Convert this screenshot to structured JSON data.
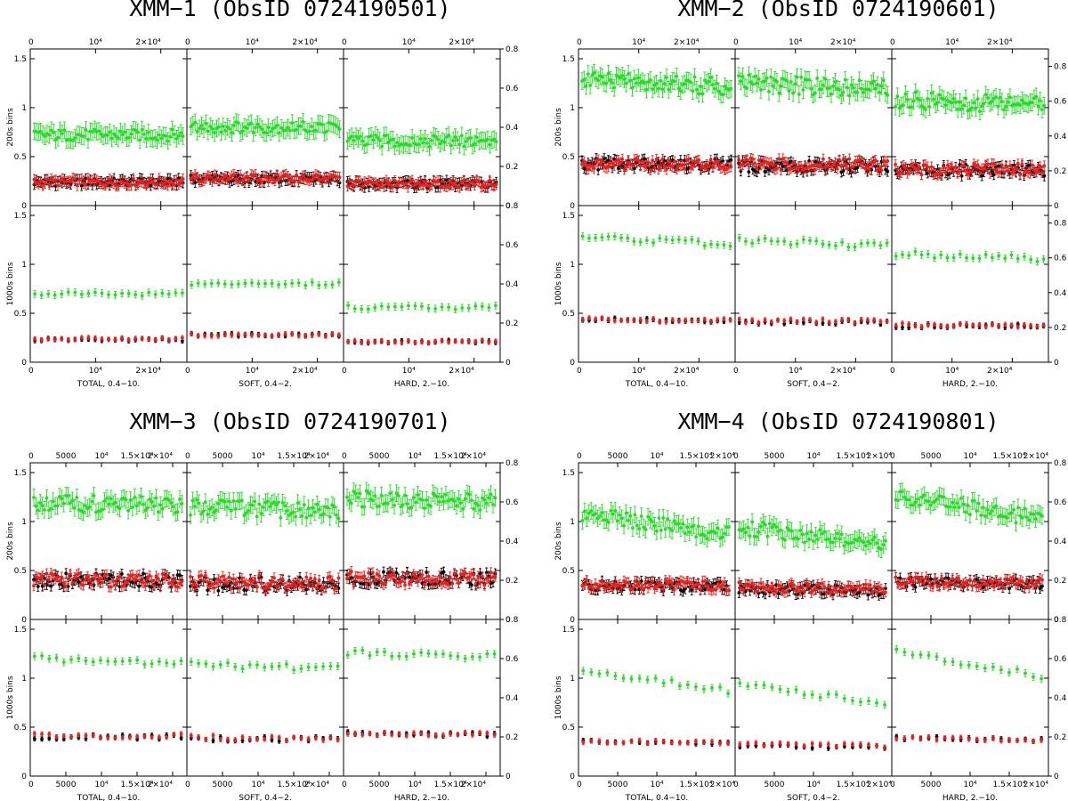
{
  "chart_data": [
    {
      "type": "scatter",
      "title": "XMM−1 (ObsID 0724190501)",
      "row_labels": [
        "200s bins",
        "1000s bins"
      ],
      "band_labels": [
        "TOTAL, 0.4−10.",
        "SOFT, 0.4−2.",
        "HARD, 2.−10."
      ],
      "xlim": [
        0,
        24000
      ],
      "x_ticks": [
        0,
        10000,
        20000
      ],
      "x_tick_labels": [
        "0",
        "10⁴",
        "2×10⁴"
      ],
      "ylim_left": [
        0,
        1.6
      ],
      "y_ticks_left": [
        "0",
        "0.5",
        "1",
        "1.5"
      ],
      "ylim_right": [
        0,
        0.8
      ],
      "y_ticks_right": [
        "0",
        "0.2",
        "0.4",
        "0.6",
        "0.8"
      ],
      "series_colors": {
        "green": "#22dd22",
        "red": "#e82020",
        "black": "#000000"
      },
      "bins_200s": {
        "x_start": 600,
        "x_end": 23400,
        "n": 70
      },
      "bins_1000s": {
        "x_start": 700,
        "x_end": 23300,
        "n": 23
      },
      "levels": {
        "200s": [
          {
            "green": 0.72,
            "red": 0.24,
            "black": 0.24
          },
          {
            "green": 0.8,
            "red": 0.28,
            "black": 0.27
          },
          {
            "green": 0.66,
            "red": 0.22,
            "black": 0.22
          }
        ],
        "1000s": [
          {
            "green": 0.7,
            "red": 0.24,
            "black": 0.23
          },
          {
            "green": 0.8,
            "red": 0.28,
            "black": 0.28
          },
          {
            "green": 0.56,
            "red": 0.21,
            "black": 0.21
          }
        ]
      },
      "scatter_200s": {
        "green": 0.06,
        "red": 0.04,
        "black": 0.04
      },
      "trend_green": 0.0
    },
    {
      "type": "scatter",
      "title": "XMM−2 (ObsID 0724190601)",
      "row_labels": [
        "200s bins",
        "1000s bins"
      ],
      "band_labels": [
        "TOTAL, 0.4−10.",
        "SOFT, 0.4−2.",
        "HARD, 2.−10."
      ],
      "xlim": [
        0,
        26000
      ],
      "x_ticks": [
        0,
        10000,
        20000
      ],
      "x_tick_labels": [
        "0",
        "10⁴",
        "2×10⁴"
      ],
      "ylim_left": [
        0,
        1.6
      ],
      "y_ticks_left": [
        "0",
        "0.5",
        "1",
        "1.5"
      ],
      "ylim_right": [
        0,
        0.9
      ],
      "y_ticks_right": [
        "0",
        "0.2",
        "0.4",
        "0.6",
        "0.8"
      ],
      "series_colors": {
        "green": "#22dd22",
        "red": "#e82020",
        "black": "#000000"
      },
      "bins_200s": {
        "x_start": 600,
        "x_end": 25300,
        "n": 75
      },
      "bins_1000s": {
        "x_start": 700,
        "x_end": 25200,
        "n": 24
      },
      "levels": {
        "200s": [
          {
            "green": 1.25,
            "red": 0.42,
            "black": 0.42
          },
          {
            "green": 1.22,
            "red": 0.42,
            "black": 0.4
          },
          {
            "green": 1.05,
            "red": 0.37,
            "black": 0.36
          }
        ],
        "1000s": [
          {
            "green": 1.24,
            "red": 0.43,
            "black": 0.43
          },
          {
            "green": 1.22,
            "red": 0.42,
            "black": 0.41
          },
          {
            "green": 1.08,
            "red": 0.38,
            "black": 0.37
          }
        ]
      },
      "scatter_200s": {
        "green": 0.09,
        "red": 0.06,
        "black": 0.06
      },
      "trend_green": -0.05
    },
    {
      "type": "scatter",
      "title": "XMM−3 (ObsID 0724190701)",
      "row_labels": [
        "200s bins",
        "1000s bins"
      ],
      "band_labels": [
        "TOTAL, 0.4−10.",
        "SOFT, 0.4−2.",
        "HARD, 2.−10."
      ],
      "xlim": [
        0,
        22000
      ],
      "x_ticks": [
        0,
        5000,
        10000,
        15000,
        20000
      ],
      "x_tick_labels": [
        "0",
        "5000",
        "10⁴",
        "1.5×10⁴",
        "2×10⁴"
      ],
      "ylim_left": [
        0,
        1.6
      ],
      "y_ticks_left": [
        "0",
        "0.5",
        "1",
        "1.5"
      ],
      "ylim_right": [
        0,
        0.8
      ],
      "y_ticks_right": [
        "0",
        "0.2",
        "0.4",
        "0.6",
        "0.8"
      ],
      "series_colors": {
        "green": "#22dd22",
        "red": "#e82020",
        "black": "#000000"
      },
      "bins_200s": {
        "x_start": 500,
        "x_end": 21300,
        "n": 70
      },
      "bins_1000s": {
        "x_start": 600,
        "x_end": 21200,
        "n": 21
      },
      "levels": {
        "200s": [
          {
            "green": 1.18,
            "red": 0.4,
            "black": 0.4
          },
          {
            "green": 1.12,
            "red": 0.38,
            "black": 0.36
          },
          {
            "green": 1.22,
            "red": 0.42,
            "black": 0.42
          }
        ],
        "1000s": [
          {
            "green": 1.18,
            "red": 0.41,
            "black": 0.4
          },
          {
            "green": 1.12,
            "red": 0.39,
            "black": 0.38
          },
          {
            "green": 1.24,
            "red": 0.43,
            "black": 0.43
          }
        ]
      },
      "scatter_200s": {
        "green": 0.09,
        "red": 0.07,
        "black": 0.07
      },
      "trend_green": -0.04
    },
    {
      "type": "scatter",
      "title": "XMM−4 (ObsID 0724190801)",
      "row_labels": [
        "200s bins",
        "1000s bins"
      ],
      "band_labels": [
        "TOTAL, 0.4−10.",
        "SOFT, 0.4−2.",
        "HARD, 2.−10."
      ],
      "xlim": [
        0,
        20000
      ],
      "x_ticks": [
        0,
        5000,
        10000,
        15000,
        20000
      ],
      "x_tick_labels": [
        "0",
        "5000",
        "10⁴",
        "1.5×10⁴",
        "2×10⁴"
      ],
      "ylim_left": [
        0,
        1.6
      ],
      "y_ticks_left": [
        "0",
        "0.5",
        "1",
        "1.5"
      ],
      "ylim_right": [
        0,
        0.8
      ],
      "y_ticks_right": [
        "0",
        "0.2",
        "0.4",
        "0.6",
        "0.8"
      ],
      "series_colors": {
        "green": "#22dd22",
        "red": "#e82020",
        "black": "#000000"
      },
      "bins_200s": {
        "x_start": 500,
        "x_end": 19200,
        "n": 68
      },
      "bins_1000s": {
        "x_start": 600,
        "x_end": 19100,
        "n": 19
      },
      "levels": {
        "200s": [
          {
            "green": 0.98,
            "red": 0.35,
            "black": 0.34
          },
          {
            "green": 0.85,
            "red": 0.32,
            "black": 0.3
          },
          {
            "green": 1.15,
            "red": 0.38,
            "black": 0.37
          }
        ],
        "1000s": [
          {
            "green": 0.98,
            "red": 0.35,
            "black": 0.34
          },
          {
            "green": 0.84,
            "red": 0.32,
            "black": 0.3
          },
          {
            "green": 1.15,
            "red": 0.38,
            "black": 0.38
          }
        ]
      },
      "scatter_200s": {
        "green": 0.08,
        "red": 0.05,
        "black": 0.05
      },
      "trend_green": -0.22
    }
  ]
}
